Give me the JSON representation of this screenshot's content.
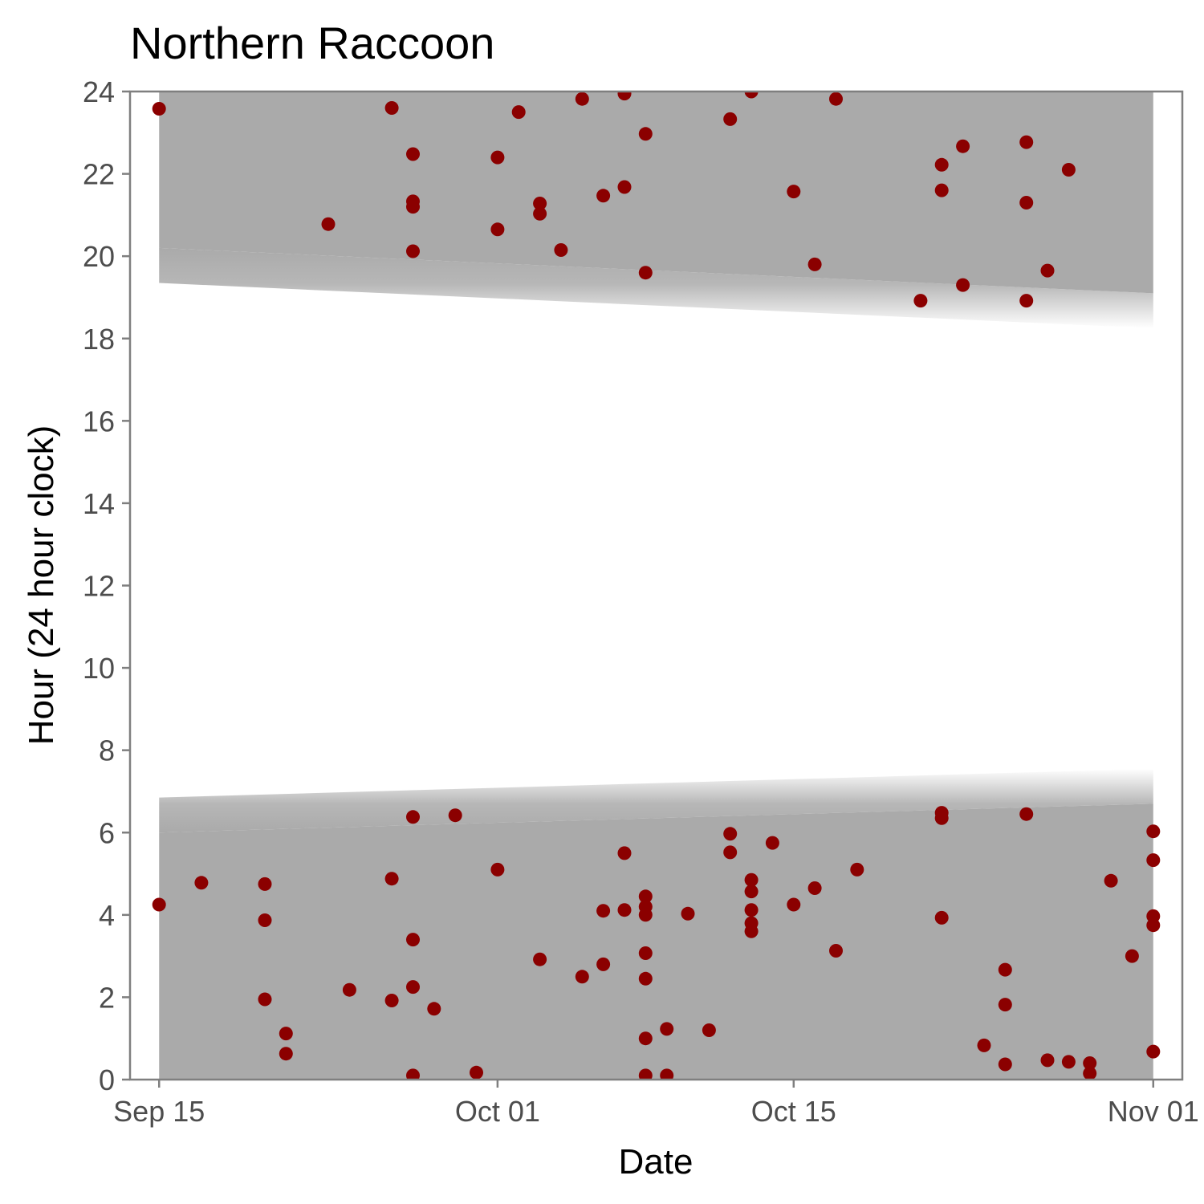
{
  "chart_data": {
    "type": "scatter",
    "title": "Northern Raccoon",
    "xlabel": "Date",
    "ylabel": "Hour (24 hour clock)",
    "x_axis": {
      "type": "date",
      "range": [
        "2023-09-13T15:00",
        "2023-11-02T09:00"
      ],
      "ticks": [
        {
          "date": "2023-09-15",
          "label": "Sep 15"
        },
        {
          "date": "2023-10-01",
          "label": "Oct 01"
        },
        {
          "date": "2023-10-15",
          "label": "Oct 15"
        },
        {
          "date": "2023-11-01",
          "label": "Nov 01"
        }
      ]
    },
    "y_axis": {
      "range": [
        0,
        24
      ],
      "ticks": [
        0,
        2,
        4,
        6,
        8,
        10,
        12,
        14,
        16,
        18,
        20,
        22,
        24
      ]
    },
    "grid": false,
    "legend": "none",
    "colors": {
      "points": "#8b0000",
      "night_shading": "#aaaaaa",
      "panel_border": "#7f7f7f",
      "background": "#ffffff"
    },
    "night_bands": {
      "dates": [
        "2023-09-15",
        "2023-11-01"
      ],
      "dawn": [
        6.0,
        6.7
      ],
      "dusk": [
        20.2,
        19.1
      ]
    },
    "points": [
      {
        "x": "2023-09-15",
        "y": 23.58
      },
      {
        "x": "2023-09-15",
        "y": 4.25
      },
      {
        "x": "2023-09-17",
        "y": 4.78
      },
      {
        "x": "2023-09-20",
        "y": 4.75
      },
      {
        "x": "2023-09-20",
        "y": 3.87
      },
      {
        "x": "2023-09-20",
        "y": 1.95
      },
      {
        "x": "2023-09-21",
        "y": 1.12
      },
      {
        "x": "2023-09-21",
        "y": 0.63
      },
      {
        "x": "2023-09-23",
        "y": 20.78
      },
      {
        "x": "2023-09-24",
        "y": 2.18
      },
      {
        "x": "2023-09-26",
        "y": 23.6
      },
      {
        "x": "2023-09-26",
        "y": 4.88
      },
      {
        "x": "2023-09-26",
        "y": 1.92
      },
      {
        "x": "2023-09-27",
        "y": 22.48
      },
      {
        "x": "2023-09-27",
        "y": 21.33
      },
      {
        "x": "2023-09-27",
        "y": 21.2
      },
      {
        "x": "2023-09-27",
        "y": 20.12
      },
      {
        "x": "2023-09-27",
        "y": 6.38
      },
      {
        "x": "2023-09-27",
        "y": 3.4
      },
      {
        "x": "2023-09-27",
        "y": 2.25
      },
      {
        "x": "2023-09-27",
        "y": 0.1
      },
      {
        "x": "2023-09-28",
        "y": 1.72
      },
      {
        "x": "2023-09-29",
        "y": 6.42
      },
      {
        "x": "2023-09-30",
        "y": 0.17
      },
      {
        "x": "2023-10-01",
        "y": 22.4
      },
      {
        "x": "2023-10-01",
        "y": 20.65
      },
      {
        "x": "2023-10-01",
        "y": 5.1
      },
      {
        "x": "2023-10-02",
        "y": 23.5
      },
      {
        "x": "2023-10-03",
        "y": 21.28
      },
      {
        "x": "2023-10-03",
        "y": 21.03
      },
      {
        "x": "2023-10-03",
        "y": 2.92
      },
      {
        "x": "2023-10-04",
        "y": 20.15
      },
      {
        "x": "2023-10-05",
        "y": 23.82
      },
      {
        "x": "2023-10-05",
        "y": 2.5
      },
      {
        "x": "2023-10-06",
        "y": 21.47
      },
      {
        "x": "2023-10-06",
        "y": 4.1
      },
      {
        "x": "2023-10-06",
        "y": 2.8
      },
      {
        "x": "2023-10-07",
        "y": 23.95
      },
      {
        "x": "2023-10-07",
        "y": 21.68
      },
      {
        "x": "2023-10-07",
        "y": 5.5
      },
      {
        "x": "2023-10-07",
        "y": 4.12
      },
      {
        "x": "2023-10-08",
        "y": 22.97
      },
      {
        "x": "2023-10-08",
        "y": 19.6
      },
      {
        "x": "2023-10-08",
        "y": 4.45
      },
      {
        "x": "2023-10-08",
        "y": 4.2
      },
      {
        "x": "2023-10-08",
        "y": 4.0
      },
      {
        "x": "2023-10-08",
        "y": 3.07
      },
      {
        "x": "2023-10-08",
        "y": 2.45
      },
      {
        "x": "2023-10-08",
        "y": 1.0
      },
      {
        "x": "2023-10-08",
        "y": 0.1
      },
      {
        "x": "2023-10-09",
        "y": 1.23
      },
      {
        "x": "2023-10-09",
        "y": 0.1
      },
      {
        "x": "2023-10-10",
        "y": 4.03
      },
      {
        "x": "2023-10-11",
        "y": 1.2
      },
      {
        "x": "2023-10-12",
        "y": 23.33
      },
      {
        "x": "2023-10-12",
        "y": 5.97
      },
      {
        "x": "2023-10-12",
        "y": 5.52
      },
      {
        "x": "2023-10-13",
        "y": 24.0
      },
      {
        "x": "2023-10-13",
        "y": 4.85
      },
      {
        "x": "2023-10-13",
        "y": 4.57
      },
      {
        "x": "2023-10-13",
        "y": 4.12
      },
      {
        "x": "2023-10-13",
        "y": 3.8
      },
      {
        "x": "2023-10-13",
        "y": 3.6
      },
      {
        "x": "2023-10-14",
        "y": 5.75
      },
      {
        "x": "2023-10-15",
        "y": 21.57
      },
      {
        "x": "2023-10-15",
        "y": 4.25
      },
      {
        "x": "2023-10-16",
        "y": 19.8
      },
      {
        "x": "2023-10-16",
        "y": 4.65
      },
      {
        "x": "2023-10-17",
        "y": 23.82
      },
      {
        "x": "2023-10-17",
        "y": 3.13
      },
      {
        "x": "2023-10-18",
        "y": 5.1
      },
      {
        "x": "2023-10-21",
        "y": 18.92
      },
      {
        "x": "2023-10-22",
        "y": 22.22
      },
      {
        "x": "2023-10-22",
        "y": 21.6
      },
      {
        "x": "2023-10-22",
        "y": 6.48
      },
      {
        "x": "2023-10-22",
        "y": 6.35
      },
      {
        "x": "2023-10-22",
        "y": 3.93
      },
      {
        "x": "2023-10-23",
        "y": 22.67
      },
      {
        "x": "2023-10-23",
        "y": 19.3
      },
      {
        "x": "2023-10-24",
        "y": 0.83
      },
      {
        "x": "2023-10-25",
        "y": 2.67
      },
      {
        "x": "2023-10-25",
        "y": 1.82
      },
      {
        "x": "2023-10-25",
        "y": 0.37
      },
      {
        "x": "2023-10-26",
        "y": 22.77
      },
      {
        "x": "2023-10-26",
        "y": 21.3
      },
      {
        "x": "2023-10-26",
        "y": 18.92
      },
      {
        "x": "2023-10-26",
        "y": 6.45
      },
      {
        "x": "2023-10-27",
        "y": 19.65
      },
      {
        "x": "2023-10-27",
        "y": 0.47
      },
      {
        "x": "2023-10-28",
        "y": 22.1
      },
      {
        "x": "2023-10-28",
        "y": 0.43
      },
      {
        "x": "2023-10-29",
        "y": 0.4
      },
      {
        "x": "2023-10-29",
        "y": 0.15
      },
      {
        "x": "2023-10-30",
        "y": 4.83
      },
      {
        "x": "2023-10-31",
        "y": 3.0
      },
      {
        "x": "2023-11-01",
        "y": 6.03
      },
      {
        "x": "2023-11-01",
        "y": 5.33
      },
      {
        "x": "2023-11-01",
        "y": 3.97
      },
      {
        "x": "2023-11-01",
        "y": 3.75
      },
      {
        "x": "2023-11-01",
        "y": 0.68
      }
    ]
  }
}
